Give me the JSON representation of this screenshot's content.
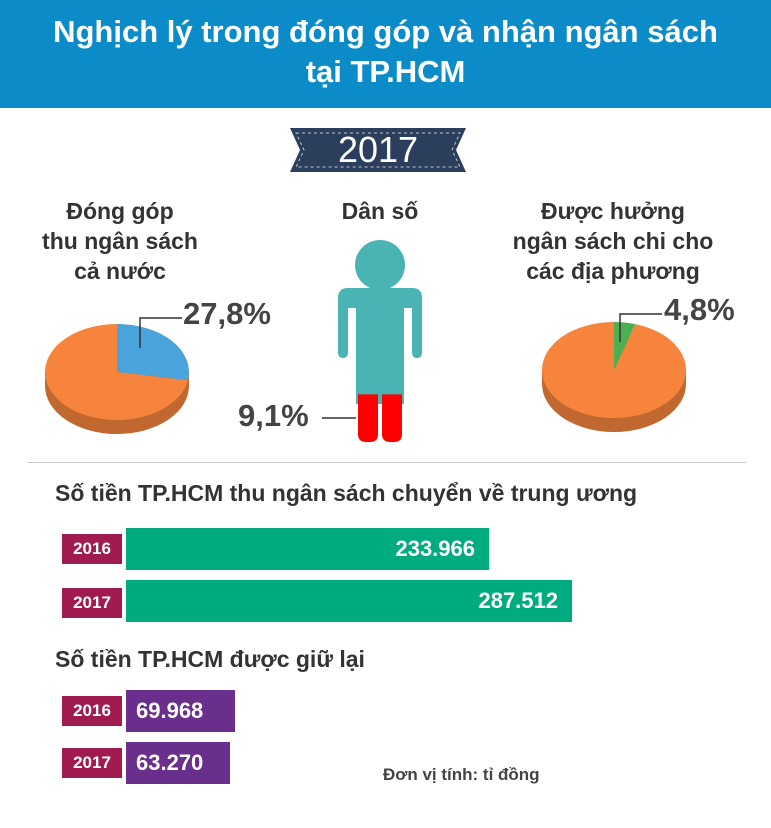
{
  "header": {
    "title_line1": "Nghịch lý trong đóng góp và nhận ngân sách",
    "title_line2": "tại TP.HCM"
  },
  "year_banner": "2017",
  "colors": {
    "header_bg": "#0b8cc9",
    "pie_main": "#f7843d",
    "pie_contribution": "#4aa3db",
    "pie_received": "#4caf50",
    "person": "#4ab3b3",
    "person_share": "#ff0000",
    "bar_sent": "#00ab7f",
    "bar_kept": "#6a2e8c",
    "year_tag": "#a01c50",
    "banner": "#2b3f5c"
  },
  "sections": {
    "contribution": {
      "label_lines": [
        "Đóng góp",
        "thu ngân sách",
        "cả nước"
      ],
      "value_label": "27,8%"
    },
    "population": {
      "label": "Dân số",
      "value_label": "9,1%"
    },
    "received": {
      "label_lines": [
        "Được hưởng",
        "ngân sách chi cho",
        "các địa phương"
      ],
      "value_label": "4,8%"
    }
  },
  "bars": {
    "sent_title": "Số tiền TP.HCM thu ngân sách chuyển về trung ương",
    "kept_title": "Số tiền TP.HCM được giữ lại",
    "unit": "Đơn vị tính: tỉ đồng"
  },
  "chart_data": [
    {
      "type": "pie",
      "title": "Đóng góp thu ngân sách cả nước",
      "values": [
        27.8,
        72.2
      ],
      "labels": [
        "27,8%",
        ""
      ],
      "colors": [
        "#4aa3db",
        "#f7843d"
      ]
    },
    {
      "type": "bar",
      "title": "Dân số",
      "categories": [
        "TP.HCM"
      ],
      "values": [
        9.1
      ],
      "labels": [
        "9,1%"
      ],
      "note": "human-figure pictogram filled to 9.1%"
    },
    {
      "type": "pie",
      "title": "Được hưởng ngân sách chi cho các địa phương",
      "values": [
        4.8,
        95.2
      ],
      "labels": [
        "4,8%",
        ""
      ],
      "colors": [
        "#4caf50",
        "#f7843d"
      ]
    },
    {
      "type": "bar",
      "title": "Số tiền TP.HCM thu ngân sách chuyển về trung ương",
      "orientation": "horizontal",
      "categories": [
        "2016",
        "2017"
      ],
      "values": [
        233966,
        287512
      ],
      "value_labels": [
        "233.966",
        "287.512"
      ],
      "color": "#00ab7f"
    },
    {
      "type": "bar",
      "title": "Số tiền TP.HCM được giữ lại",
      "orientation": "horizontal",
      "categories": [
        "2016",
        "2017"
      ],
      "values": [
        69968,
        63270
      ],
      "value_labels": [
        "69.968",
        "63.270"
      ],
      "color": "#6a2e8c"
    }
  ]
}
